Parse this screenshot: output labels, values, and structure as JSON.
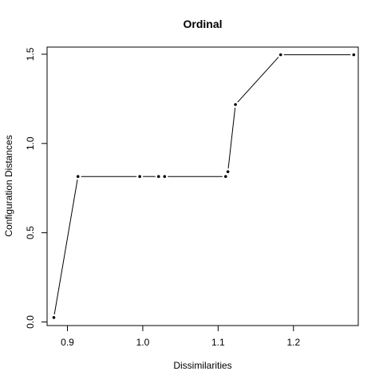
{
  "chart_data": {
    "type": "line",
    "title": "Ordinal",
    "xlabel": "Dissimilarities",
    "ylabel": "Configuration Distances",
    "xlim": [
      0.873,
      1.286
    ],
    "ylim": [
      -0.02,
      1.54
    ],
    "x_ticks": [
      0.9,
      1.0,
      1.1,
      1.2
    ],
    "x_tick_labels": [
      "0.9",
      "1.0",
      "1.1",
      "1.2"
    ],
    "y_ticks": [
      0.0,
      0.5,
      1.0,
      1.5
    ],
    "y_tick_labels": [
      "0.0",
      "0.5",
      "1.0",
      "1.5"
    ],
    "grid": false,
    "series": [
      {
        "marker": "point",
        "line_style": "step-fit (broken around points)",
        "color": "#000000",
        "points": [
          {
            "x": 0.882,
            "y": 0.025
          },
          {
            "x": 0.914,
            "y": 0.815
          },
          {
            "x": 0.996,
            "y": 0.815
          },
          {
            "x": 1.021,
            "y": 0.815
          },
          {
            "x": 1.029,
            "y": 0.815
          },
          {
            "x": 1.11,
            "y": 0.815
          },
          {
            "x": 1.113,
            "y": 0.842
          },
          {
            "x": 1.123,
            "y": 1.218
          },
          {
            "x": 1.183,
            "y": 1.497
          },
          {
            "x": 1.28,
            "y": 1.497
          }
        ]
      }
    ]
  }
}
